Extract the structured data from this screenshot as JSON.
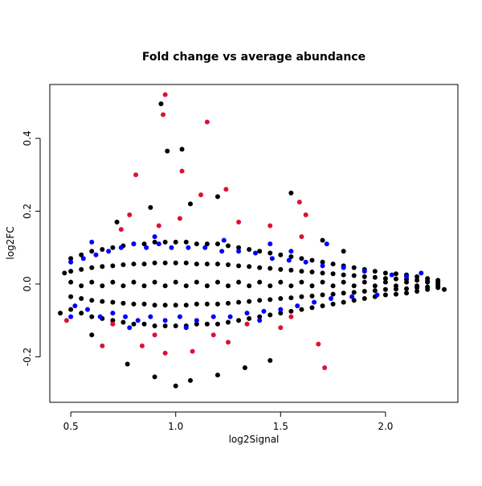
{
  "chart_data": {
    "type": "scatter",
    "title": "Fold change vs average abundance",
    "x_label": "log2Signal",
    "y_label": "log2FC",
    "xlim": [
      0.4,
      2.345
    ],
    "ylim": [
      -0.325,
      0.548
    ],
    "xticks": [
      0.5,
      {
        "value": 1,
        "label": "1.0"
      },
      1.5,
      {
        "value": 2,
        "label": "2.0"
      }
    ],
    "yticks": [
      -0.2,
      {
        "value": 0,
        "label": "0.0"
      },
      0.2,
      0.4
    ],
    "series": [
      {
        "color": "#000000",
        "x": [
          0.5,
          0.5,
          0.5,
          0.5,
          0.5,
          0.55,
          0.55,
          0.55,
          0.55,
          0.55,
          0.6,
          0.6,
          0.6,
          0.6,
          0.6,
          0.65,
          0.65,
          0.65,
          0.65,
          0.65,
          0.7,
          0.7,
          0.7,
          0.7,
          0.7,
          0.75,
          0.75,
          0.75,
          0.75,
          0.75,
          0.8,
          0.8,
          0.8,
          0.8,
          0.8,
          0.85,
          0.85,
          0.85,
          0.85,
          0.85,
          0.9,
          0.9,
          0.9,
          0.9,
          0.9,
          0.95,
          0.95,
          0.95,
          0.95,
          0.95,
          1,
          1,
          1,
          1,
          1,
          1.05,
          1.05,
          1.05,
          1.05,
          1.05,
          1.1,
          1.1,
          1.1,
          1.1,
          1.1,
          1.15,
          1.15,
          1.15,
          1.15,
          1.15,
          1.2,
          1.2,
          1.2,
          1.2,
          1.2,
          1.25,
          1.25,
          1.25,
          1.25,
          1.25,
          1.3,
          1.3,
          1.3,
          1.3,
          1.3,
          1.35,
          1.35,
          1.35,
          1.35,
          1.35,
          1.4,
          1.4,
          1.4,
          1.4,
          1.4,
          1.45,
          1.45,
          1.45,
          1.45,
          1.45,
          1.5,
          1.5,
          1.5,
          1.5,
          1.5,
          1.55,
          1.55,
          1.55,
          1.55,
          1.55,
          1.6,
          1.6,
          1.6,
          1.6,
          1.6,
          1.65,
          1.65,
          1.65,
          1.65,
          1.65,
          1.7,
          1.7,
          1.7,
          1.7,
          1.7,
          1.75,
          1.75,
          1.75,
          1.75,
          1.75,
          1.8,
          1.8,
          1.8,
          1.8,
          1.8,
          1.85,
          1.85,
          1.85,
          1.85,
          1.85,
          1.9,
          1.9,
          1.9,
          1.9,
          1.9,
          1.95,
          1.95,
          1.95,
          1.95,
          1.95,
          2,
          2,
          2,
          2,
          2,
          2.05,
          2.05,
          2.05,
          2.05,
          2.05,
          2.1,
          2.1,
          2.1,
          2.1,
          2.1,
          2.15,
          2.15,
          2.15,
          2.15,
          2.15,
          2.2,
          2.2,
          2.2,
          2.2,
          2.2,
          2.25,
          2.25,
          2.25,
          2.25,
          2.25,
          0.93,
          0.96,
          1.03,
          1.55,
          0.88,
          1.07,
          1.2,
          0.9,
          1,
          1.07,
          1.2,
          0.77,
          1.45,
          1.33,
          0.6,
          0.72,
          1.7,
          1.8,
          0.45,
          0.47,
          2.28
        ],
        "values": [
          -0.07,
          -0.035,
          0.005,
          0.035,
          0.07,
          -0.08,
          -0.04,
          -0.005,
          0.04,
          0.08,
          -0.09,
          -0.045,
          0.005,
          0.045,
          0.09,
          -0.095,
          -0.048,
          -0.005,
          0.048,
          0.095,
          -0.1,
          -0.05,
          0.005,
          0.05,
          0.1,
          -0.105,
          -0.053,
          -0.005,
          0.053,
          0.105,
          -0.11,
          -0.055,
          0.005,
          0.055,
          0.11,
          -0.11,
          -0.055,
          -0.005,
          0.055,
          0.11,
          -0.115,
          -0.058,
          0.005,
          0.058,
          0.115,
          -0.115,
          -0.058,
          -0.005,
          0.058,
          0.115,
          -0.115,
          -0.058,
          0.005,
          0.058,
          0.115,
          -0.115,
          -0.058,
          -0.005,
          0.058,
          0.115,
          -0.11,
          -0.055,
          0.005,
          0.055,
          0.11,
          -0.11,
          -0.055,
          -0.005,
          0.055,
          0.11,
          -0.11,
          -0.055,
          0.005,
          0.055,
          0.11,
          -0.105,
          -0.053,
          -0.005,
          0.053,
          0.105,
          -0.1,
          -0.05,
          0.005,
          0.05,
          0.1,
          -0.095,
          -0.048,
          -0.005,
          0.048,
          0.095,
          -0.09,
          -0.045,
          0.005,
          0.045,
          0.09,
          -0.085,
          -0.043,
          -0.005,
          0.043,
          0.085,
          -0.08,
          -0.04,
          0.005,
          0.04,
          0.08,
          -0.075,
          -0.038,
          -0.005,
          0.038,
          0.075,
          -0.07,
          -0.035,
          0.005,
          0.035,
          0.07,
          -0.065,
          -0.033,
          -0.005,
          0.033,
          0.065,
          -0.06,
          -0.03,
          0.005,
          0.03,
          0.06,
          -0.055,
          -0.028,
          -0.005,
          0.028,
          0.055,
          -0.05,
          -0.025,
          0.005,
          0.025,
          0.05,
          -0.045,
          -0.023,
          -0.005,
          0.023,
          0.045,
          -0.04,
          -0.02,
          0.005,
          0.02,
          0.04,
          -0.035,
          -0.018,
          -0.005,
          0.018,
          0.035,
          -0.03,
          -0.015,
          0.005,
          0.015,
          0.03,
          -0.028,
          -0.014,
          -0.005,
          0.014,
          0.028,
          -0.025,
          -0.013,
          0.005,
          0.013,
          0.025,
          -0.02,
          -0.01,
          -0.005,
          0.01,
          0.02,
          -0.015,
          -0.008,
          0.005,
          0.008,
          0.015,
          -0.01,
          -0.005,
          0,
          0.005,
          0.01,
          0.495,
          0.365,
          0.37,
          0.25,
          0.21,
          0.22,
          0.24,
          -0.255,
          -0.28,
          -0.265,
          -0.25,
          -0.22,
          -0.21,
          -0.23,
          -0.14,
          0.17,
          0.12,
          0.09,
          -0.08,
          0.03,
          -0.015
        ]
      },
      {
        "color": "#0000ff",
        "x": [
          0.5,
          0.52,
          0.56,
          0.58,
          0.62,
          0.64,
          0.68,
          0.7,
          0.74,
          0.76,
          0.8,
          0.82,
          0.86,
          0.88,
          0.92,
          0.95,
          0.98,
          1.02,
          1.06,
          1.1,
          1.14,
          1.18,
          1.22,
          1.26,
          1.3,
          1.34,
          1.38,
          1.42,
          1.46,
          1.5,
          1.54,
          1.58,
          1.62,
          1.66,
          1.7,
          1.74,
          1.8,
          1.84,
          1.9,
          1.96,
          2.03,
          2.1,
          2.17,
          0.6,
          0.9,
          1.23,
          1.45,
          1.55,
          1.72,
          0.78,
          1.05,
          1.4,
          0.5
        ],
        "values": [
          0.06,
          -0.06,
          0.07,
          -0.07,
          0.08,
          -0.09,
          0.09,
          -0.08,
          0.1,
          -0.09,
          0.11,
          -0.1,
          0.1,
          -0.09,
          0.11,
          -0.1,
          0.1,
          -0.09,
          0.1,
          -0.1,
          0.1,
          -0.09,
          0.09,
          -0.09,
          0.09,
          -0.08,
          0.085,
          -0.075,
          0.07,
          -0.07,
          0.065,
          -0.06,
          0.06,
          -0.05,
          0.05,
          -0.04,
          0.045,
          -0.035,
          0.035,
          -0.03,
          0.025,
          0.02,
          0.03,
          0.115,
          0.13,
          0.12,
          0.11,
          0.09,
          0.11,
          -0.12,
          -0.12,
          -0.1,
          -0.09
        ]
      },
      {
        "color": "#dd1133",
        "x": [
          0.95,
          0.94,
          1.15,
          1.03,
          0.81,
          1.24,
          1.59,
          1.12,
          1.62,
          0.78,
          0.74,
          1.02,
          1.3,
          1.45,
          0.92,
          0.65,
          0.84,
          0.95,
          1.08,
          1.25,
          1.68,
          1.71,
          0.48,
          0.7,
          1.34,
          1.5,
          1.18,
          0.9,
          1.6,
          1.55
        ],
        "values": [
          0.52,
          0.465,
          0.445,
          0.31,
          0.3,
          0.26,
          0.225,
          0.245,
          0.19,
          0.19,
          0.15,
          0.18,
          0.17,
          0.16,
          0.16,
          -0.17,
          -0.17,
          -0.19,
          -0.185,
          -0.16,
          -0.165,
          -0.23,
          -0.1,
          -0.11,
          -0.11,
          -0.12,
          -0.14,
          -0.14,
          0.13,
          -0.09
        ]
      }
    ]
  }
}
